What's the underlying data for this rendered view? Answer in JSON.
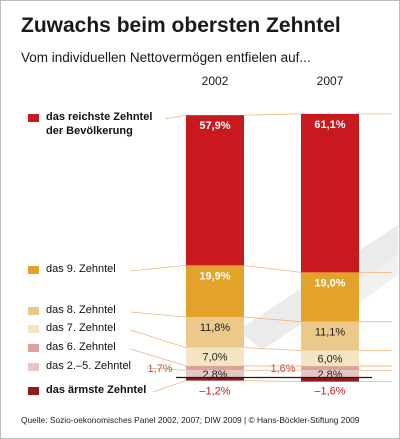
{
  "title": "Zuwachs beim obersten Zehntel",
  "subtitle": "Vom individuellen Nettovermögen entfielen auf...",
  "source": "Quelle: Sozio-oekonomisches Panel 2002, 2007; DIW 2009 | © Hans-Böckler-Stiftung 2009",
  "chart_data": {
    "type": "bar",
    "stacked": true,
    "unit": "%",
    "categories": [
      "2002",
      "2007"
    ],
    "series": [
      {
        "name": "das reichste Zehntel der Bevölkerung",
        "legend_lines": [
          "das reichste Zehntel",
          "der Bevölkerung"
        ],
        "color": "#c8191e",
        "values": [
          57.9,
          61.1
        ],
        "labels": [
          "57,9%",
          "61,1%"
        ],
        "label_color": "#ffffff",
        "legend_bold": true
      },
      {
        "name": "das 9. Zehntel",
        "legend_lines": [
          "das 9. Zehntel"
        ],
        "color": "#e3a22a",
        "values": [
          19.9,
          19.0
        ],
        "labels": [
          "19,9%",
          "19,0%"
        ],
        "label_color": "#ffffff",
        "legend_bold": false
      },
      {
        "name": "das 8. Zehntel",
        "legend_lines": [
          "das 8. Zehntel"
        ],
        "color": "#ecc98a",
        "values": [
          11.8,
          11.1
        ],
        "labels": [
          "11,8%",
          "11,1%"
        ],
        "label_color": "#222222",
        "legend_bold": false
      },
      {
        "name": "das 7. Zehntel",
        "legend_lines": [
          "das 7. Zehntel"
        ],
        "color": "#f6e5c3",
        "values": [
          7.0,
          6.0
        ],
        "labels": [
          "7,0%",
          "6,0%"
        ],
        "label_color": "#222222",
        "legend_bold": false
      },
      {
        "name": "das 6. Zehntel",
        "legend_lines": [
          "das 6. Zehntel"
        ],
        "color": "#dba29a",
        "values": [
          1.7,
          1.6
        ],
        "labels": [
          "1,7%",
          "1,6%"
        ],
        "label_color": "#c0504d",
        "legend_bold": false
      },
      {
        "name": "das 2.–5. Zehntel",
        "legend_lines": [
          "das 2.–5. Zehntel"
        ],
        "color": "#e9c7c1",
        "values": [
          2.8,
          2.8
        ],
        "labels": [
          "2,8%",
          "2,8%"
        ],
        "label_color": "#222222",
        "legend_bold": false
      },
      {
        "name": "das ärmste Zehntel",
        "legend_lines": [
          "das ärmste Zehntel"
        ],
        "color": "#8e1b1e",
        "values": [
          -1.2,
          -1.6
        ],
        "labels": [
          "–1,2%",
          "–1,6%"
        ],
        "label_color": "#c8191e",
        "legend_bold": true
      }
    ]
  }
}
